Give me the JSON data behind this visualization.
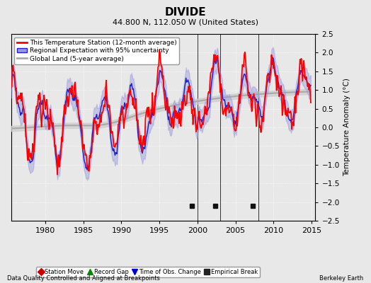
{
  "title": "DIVIDE",
  "subtitle": "44.800 N, 112.050 W (United States)",
  "ylabel": "Temperature Anomaly (°C)",
  "xlabel_left": "Data Quality Controlled and Aligned at Breakpoints",
  "xlabel_right": "Berkeley Earth",
  "xlim": [
    1975.5,
    2015.5
  ],
  "ylim": [
    -2.5,
    2.5
  ],
  "yticks": [
    -2.5,
    -2,
    -1.5,
    -1,
    -0.5,
    0,
    0.5,
    1,
    1.5,
    2,
    2.5
  ],
  "xticks": [
    1980,
    1985,
    1990,
    1995,
    2000,
    2005,
    2010,
    2015
  ],
  "background_color": "#e8e8e8",
  "plot_bg_color": "#e8e8e8",
  "grid_color": "#ffffff",
  "empirical_breaks": [
    1999.3,
    2002.3,
    2007.3
  ],
  "vertical_lines": [
    2000.0,
    2003.0,
    2008.0
  ],
  "red_line_color": "#ff0000",
  "blue_line_color": "#2222cc",
  "blue_fill_color": "#9999dd",
  "gray_line_color": "#aaaaaa",
  "gray_fill_color": "#cccccc",
  "legend_items": [
    {
      "label": "This Temperature Station (12-month average)",
      "color": "#ff0000",
      "lw": 2.0
    },
    {
      "label": "Regional Expectation with 95% uncertainty",
      "color": "#2222cc",
      "lw": 1.5
    },
    {
      "label": "Global Land (5-year average)",
      "color": "#aaaaaa",
      "lw": 2.0
    }
  ],
  "bottom_legend": [
    {
      "label": "Station Move",
      "marker": "D",
      "color": "#cc0000"
    },
    {
      "label": "Record Gap",
      "marker": "^",
      "color": "#008800"
    },
    {
      "label": "Time of Obs. Change",
      "marker": "v",
      "color": "#0000cc"
    },
    {
      "label": "Empirical Break",
      "marker": "s",
      "color": "#222222"
    }
  ]
}
